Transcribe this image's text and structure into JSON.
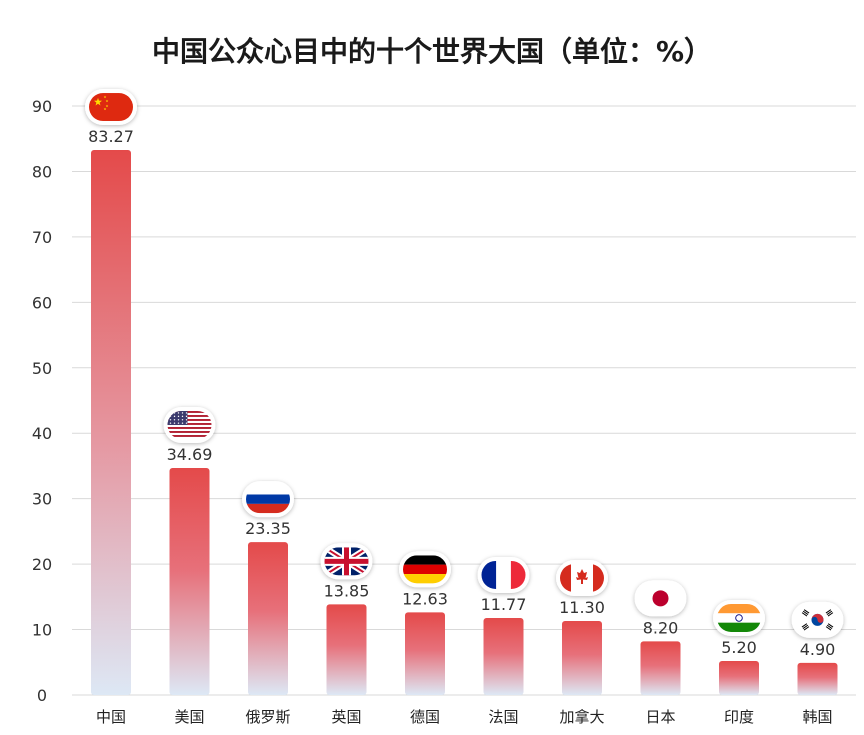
{
  "chart_data": {
    "type": "bar",
    "title": "中国公众心目中的十个世界大国（单位：%）",
    "xlabel": "",
    "ylabel": "",
    "ylim": [
      0,
      90
    ],
    "yticks": [
      0,
      10,
      20,
      30,
      40,
      50,
      60,
      70,
      80,
      90
    ],
    "grid": true,
    "categories": [
      "中国",
      "美国",
      "俄罗斯",
      "英国",
      "德国",
      "法国",
      "加拿大",
      "日本",
      "印度",
      "韩国"
    ],
    "values": [
      83.27,
      34.69,
      23.35,
      13.85,
      12.63,
      11.77,
      11.3,
      8.2,
      5.2,
      4.9
    ],
    "value_labels": [
      "83.27",
      "34.69",
      "23.35",
      "13.85",
      "12.63",
      "11.77",
      "11.30",
      "8.20",
      "5.20",
      "4.90"
    ],
    "flag_icons": [
      "china-flag-icon",
      "usa-flag-icon",
      "russia-flag-icon",
      "uk-flag-icon",
      "germany-flag-icon",
      "france-flag-icon",
      "canada-flag-icon",
      "japan-flag-icon",
      "india-flag-icon",
      "korea-flag-icon"
    ],
    "colors": {
      "bar_top": "#e44a4a",
      "bar_bottom": "#dde8f5",
      "grid": "#d9d9d9",
      "text": "#333333"
    }
  }
}
